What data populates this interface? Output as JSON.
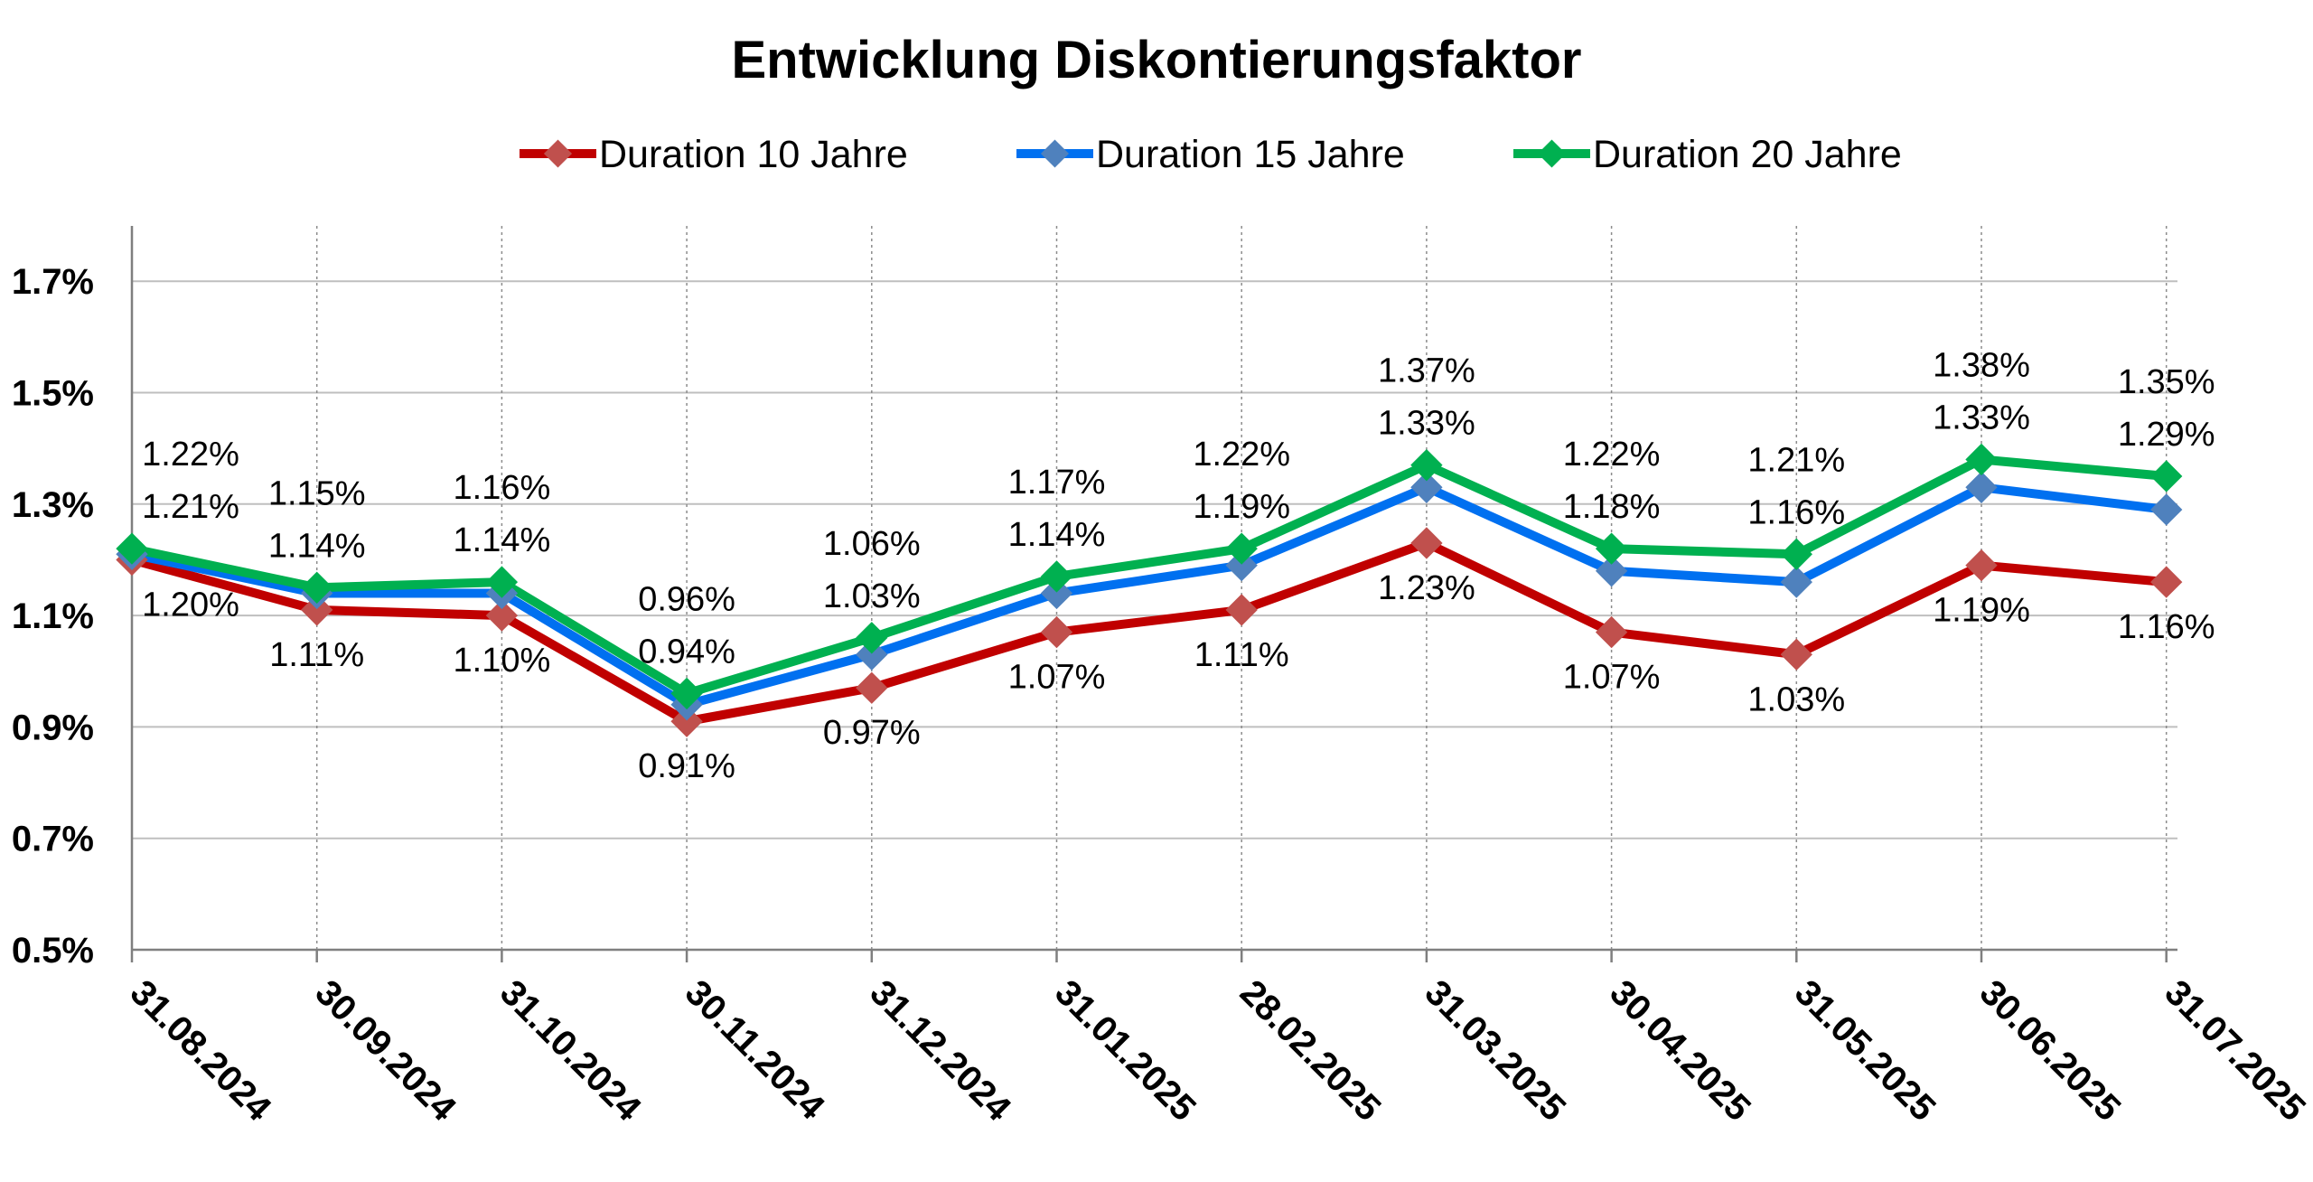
{
  "chart_data": {
    "type": "line",
    "title": "Entwicklung Diskontierungsfaktor",
    "xlabel": "",
    "ylabel": "",
    "categories": [
      "31.08.2024",
      "30.09.2024",
      "31.10.2024",
      "30.11.2024",
      "31.12.2024",
      "31.01.2025",
      "28.02.2025",
      "31.03.2025",
      "30.04.2025",
      "31.05.2025",
      "30.06.2025",
      "31.07.2025"
    ],
    "yticks": [
      "0.5%",
      "0.7%",
      "0.9%",
      "1.1%",
      "1.3%",
      "1.5%",
      "1.7%"
    ],
    "ylim": [
      0.5,
      1.8
    ],
    "grid": true,
    "legend_position": "top",
    "series": [
      {
        "name": "Duration 10 Jahre",
        "color": "#c00000",
        "marker_color": "#c0504d",
        "values": [
          1.2,
          1.11,
          1.1,
          0.91,
          0.97,
          1.07,
          1.11,
          1.23,
          1.07,
          1.03,
          1.19,
          1.16
        ],
        "labels": [
          "1.20%",
          "1.11%",
          "1.10%",
          "0.91%",
          "0.97%",
          "1.07%",
          "1.11%",
          "1.23%",
          "1.07%",
          "1.03%",
          "1.19%",
          "1.16%"
        ]
      },
      {
        "name": "Duration 15 Jahre",
        "color": "#0070f0",
        "marker_color": "#4f81bd",
        "values": [
          1.21,
          1.14,
          1.14,
          0.94,
          1.03,
          1.14,
          1.19,
          1.33,
          1.18,
          1.16,
          1.33,
          1.29
        ],
        "labels": [
          "1.21%",
          "1.14%",
          "1.14%",
          "0.94%",
          "1.03%",
          "1.14%",
          "1.19%",
          "1.33%",
          "1.18%",
          "1.16%",
          "1.33%",
          "1.29%"
        ]
      },
      {
        "name": "Duration 20 Jahre",
        "color": "#00b050",
        "marker_color": "#00b050",
        "values": [
          1.22,
          1.15,
          1.16,
          0.96,
          1.06,
          1.17,
          1.22,
          1.37,
          1.22,
          1.21,
          1.38,
          1.35
        ],
        "labels": [
          "1.22%",
          "1.15%",
          "1.16%",
          "0.96%",
          "1.06%",
          "1.17%",
          "1.22%",
          "1.37%",
          "1.22%",
          "1.21%",
          "1.38%",
          "1.35%"
        ]
      }
    ]
  }
}
